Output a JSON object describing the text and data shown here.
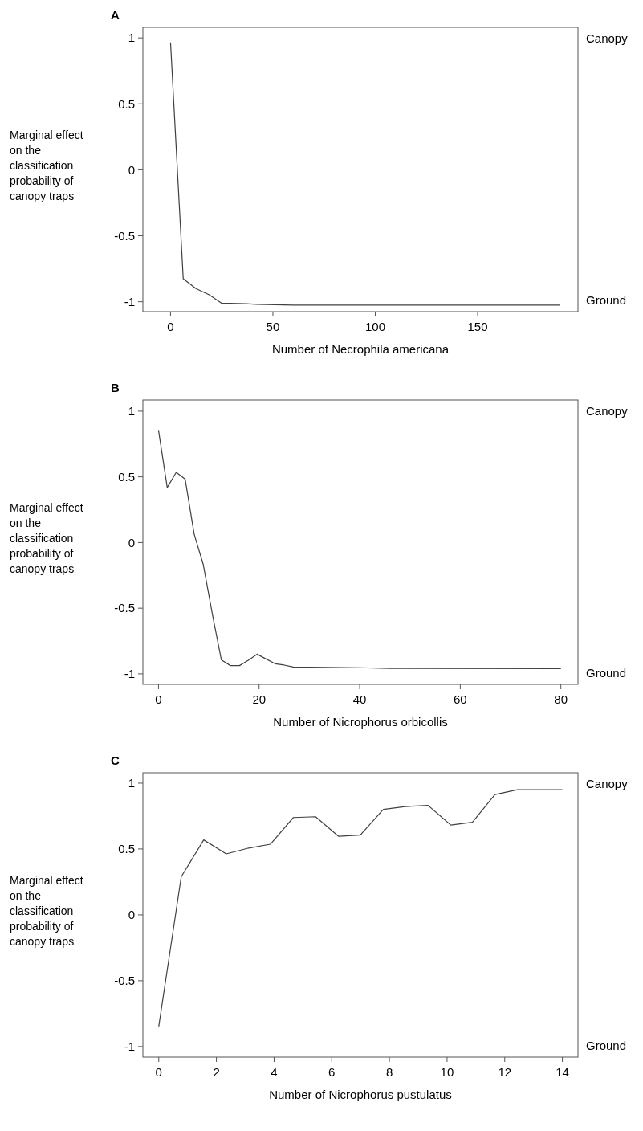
{
  "chart_data": [
    {
      "type": "line",
      "title": "A",
      "xlabel": "Number of Necrophila americana",
      "ylabel": "Marginal effect on the classification probability of canopy traps",
      "xlim": [
        -13.5,
        199
      ],
      "xticks": [
        0,
        50,
        100,
        150
      ],
      "ylim": [
        -1.075,
        1.08
      ],
      "yticks": [
        -1,
        -0.5,
        0,
        0.5,
        1
      ],
      "annotations": [
        "Canopy",
        "Ground"
      ],
      "grid": false,
      "series": [
        {
          "color": "#404040",
          "x": [
            0,
            6.2,
            12.4,
            18.9,
            24.8,
            37,
            42,
            60,
            100,
            190
          ],
          "values": [
            0.966,
            -0.826,
            -0.9,
            -0.947,
            -1.01,
            -1.015,
            -1.02,
            -1.025,
            -1.025,
            -1.025
          ]
        }
      ]
    },
    {
      "type": "line",
      "title": "B",
      "xlabel": "Number of Nicrophorus orbicollis",
      "ylabel": "Marginal effect on the classification probability of canopy traps",
      "xlim": [
        -3.1,
        83.4
      ],
      "xticks": [
        0,
        20,
        40,
        60,
        80
      ],
      "ylim": [
        -1.08,
        1.085
      ],
      "yticks": [
        -1,
        -0.5,
        0,
        0.5,
        1
      ],
      "annotations": [
        "Canopy",
        "Ground"
      ],
      "grid": false,
      "series": [
        {
          "color": "#404040",
          "x": [
            0,
            1.74,
            3.53,
            5.3,
            7.1,
            8.9,
            10.7,
            12.5,
            14.3,
            16.1,
            17.8,
            19.6,
            21.3,
            23.2,
            25,
            26.8,
            40,
            46,
            80
          ],
          "values": [
            0.856,
            0.419,
            0.535,
            0.483,
            0.063,
            -0.167,
            -0.542,
            -0.894,
            -0.937,
            -0.937,
            -0.898,
            -0.85,
            -0.885,
            -0.923,
            -0.933,
            -0.948,
            -0.953,
            -0.958,
            -0.96
          ]
        }
      ]
    },
    {
      "type": "line",
      "title": "C",
      "xlabel": "Number of Nicrophorus pustulatus",
      "ylabel": "Marginal effect on the classification probability of canopy traps",
      "xlim": [
        -0.55,
        14.54
      ],
      "xticks": [
        0,
        2,
        4,
        6,
        8,
        10,
        12,
        14
      ],
      "ylim": [
        -1.08,
        1.079
      ],
      "yticks": [
        -1,
        -0.5,
        0,
        0.5,
        1
      ],
      "annotations": [
        "Canopy",
        "Ground"
      ],
      "grid": false,
      "series": [
        {
          "color": "#404040",
          "x": [
            0,
            0.78,
            1.56,
            2.34,
            3.12,
            3.87,
            4.67,
            5.44,
            6.23,
            6.99,
            7.79,
            8.55,
            9.34,
            10.13,
            10.88,
            11.66,
            12.44,
            14
          ],
          "values": [
            -0.847,
            0.289,
            0.569,
            0.463,
            0.507,
            0.536,
            0.739,
            0.745,
            0.597,
            0.605,
            0.801,
            0.822,
            0.831,
            0.682,
            0.703,
            0.914,
            0.95,
            0.95
          ]
        }
      ]
    }
  ]
}
